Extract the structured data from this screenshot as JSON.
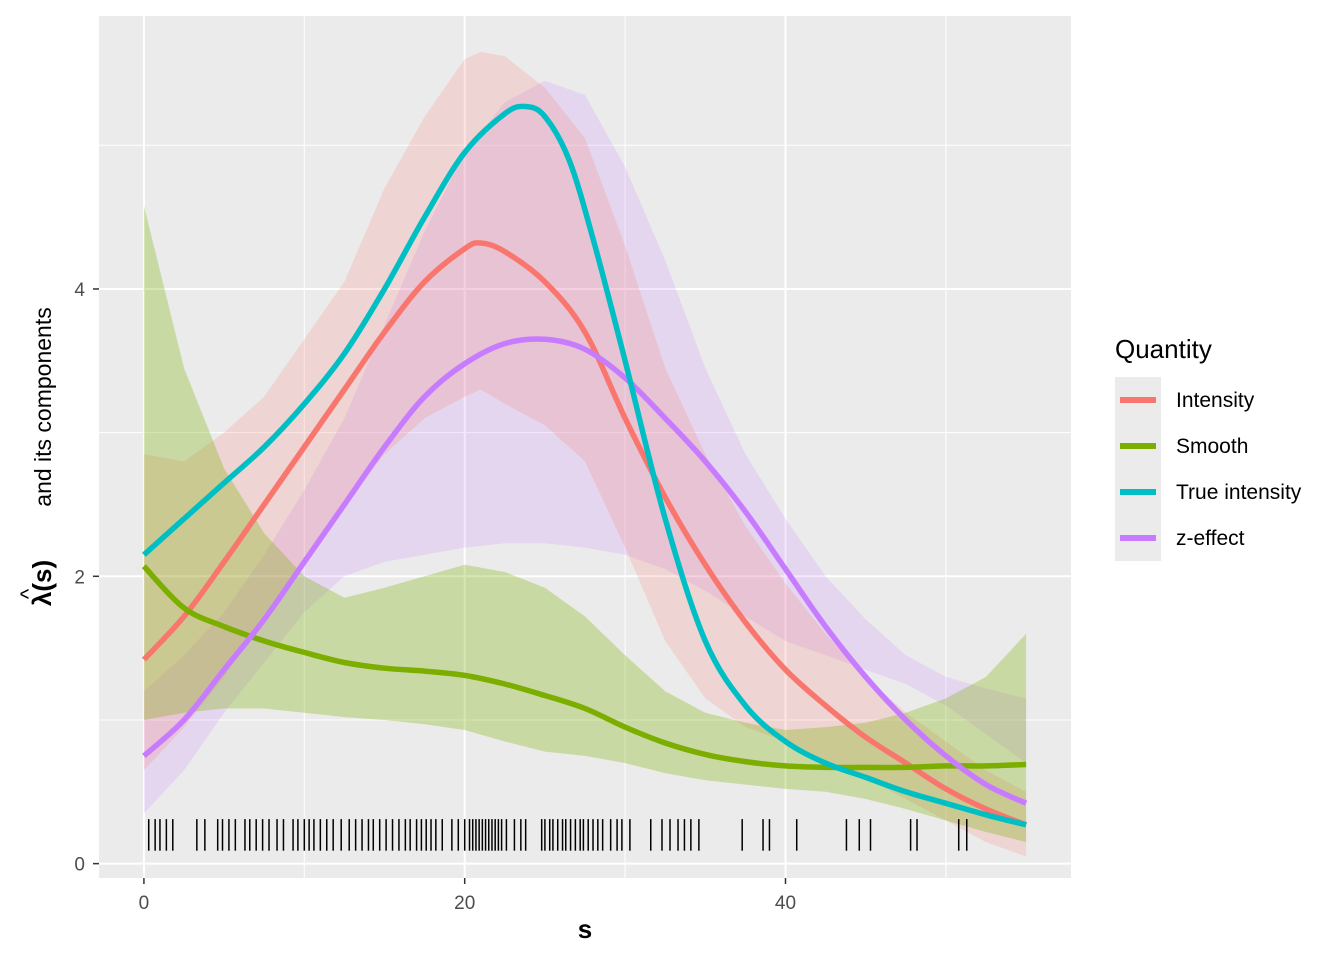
{
  "chart_data": {
    "type": "line",
    "title": "",
    "xlabel": "s",
    "ylabel_hat": "^",
    "ylabel_lambda": "λ(s)",
    "ylabel_rest": "and its components",
    "xlim": [
      -2.8,
      57.8
    ],
    "ylim": [
      -0.1,
      5.9
    ],
    "x_ticks": [
      0,
      20,
      40
    ],
    "x_tick_labels": [
      "0",
      "20",
      "40"
    ],
    "y_ticks": [
      0,
      2,
      4
    ],
    "y_tick_labels": [
      "0",
      "2",
      "4"
    ],
    "grid": true,
    "legend": {
      "title": "Quantity",
      "position": "right"
    },
    "series": [
      {
        "name": "Intensity",
        "color": "#F8766D",
        "x": [
          0,
          2.5,
          5,
          7.5,
          10,
          12.5,
          15,
          17.5,
          20,
          21,
          22.5,
          25,
          27.5,
          30,
          32.5,
          35,
          37.5,
          40,
          42.5,
          45,
          47.5,
          50,
          52.5,
          55
        ],
        "y": [
          1.42,
          1.72,
          2.1,
          2.5,
          2.9,
          3.3,
          3.7,
          4.05,
          4.28,
          4.32,
          4.26,
          4.05,
          3.7,
          3.1,
          2.55,
          2.08,
          1.68,
          1.35,
          1.1,
          0.88,
          0.7,
          0.52,
          0.38,
          0.27
        ],
        "lower": [
          0.65,
          0.95,
          1.3,
          1.7,
          2.1,
          2.5,
          2.85,
          3.1,
          3.25,
          3.3,
          3.2,
          3.05,
          2.8,
          2.2,
          1.55,
          1.15,
          0.95,
          0.85,
          0.72,
          0.6,
          0.45,
          0.3,
          0.15,
          0.05
        ],
        "upper": [
          2.85,
          2.8,
          3.0,
          3.25,
          3.65,
          4.05,
          4.7,
          5.2,
          5.6,
          5.65,
          5.62,
          5.4,
          5.05,
          4.3,
          3.45,
          2.85,
          2.35,
          1.95,
          1.6,
          1.3,
          1.05,
          0.85,
          0.65,
          0.5
        ]
      },
      {
        "name": "Smooth",
        "color": "#7CAE00",
        "x": [
          0,
          2.5,
          5,
          7.5,
          10,
          12.5,
          15,
          17.5,
          20,
          22.5,
          25,
          27.5,
          30,
          32.5,
          35,
          37.5,
          40,
          42.5,
          45,
          47.5,
          50,
          52.5,
          55
        ],
        "y": [
          2.07,
          1.78,
          1.65,
          1.55,
          1.47,
          1.4,
          1.36,
          1.34,
          1.31,
          1.25,
          1.17,
          1.08,
          0.95,
          0.84,
          0.76,
          0.71,
          0.68,
          0.67,
          0.67,
          0.67,
          0.68,
          0.68,
          0.69
        ],
        "lower": [
          1.0,
          1.05,
          1.08,
          1.08,
          1.05,
          1.02,
          1.0,
          0.97,
          0.93,
          0.85,
          0.78,
          0.75,
          0.7,
          0.63,
          0.58,
          0.55,
          0.52,
          0.5,
          0.45,
          0.38,
          0.3,
          0.22,
          0.15
        ],
        "upper": [
          4.58,
          3.45,
          2.75,
          2.3,
          2.0,
          1.85,
          1.92,
          2.0,
          2.08,
          2.03,
          1.92,
          1.72,
          1.45,
          1.2,
          1.05,
          0.98,
          0.93,
          0.95,
          0.98,
          1.05,
          1.15,
          1.3,
          1.6
        ]
      },
      {
        "name": "True intensity",
        "color": "#00BFC4",
        "x": [
          0,
          2.5,
          5,
          7.5,
          10,
          12.5,
          15,
          17.5,
          20,
          22.5,
          23.8,
          25,
          26.5,
          28,
          30,
          32.5,
          35,
          37.5,
          40,
          42.5,
          45,
          47.5,
          50,
          52.5,
          55
        ],
        "y": [
          2.15,
          2.4,
          2.65,
          2.9,
          3.2,
          3.55,
          4.0,
          4.5,
          4.95,
          5.22,
          5.27,
          5.2,
          4.9,
          4.35,
          3.5,
          2.4,
          1.55,
          1.1,
          0.85,
          0.7,
          0.6,
          0.5,
          0.42,
          0.34,
          0.27
        ]
      },
      {
        "name": "z-effect",
        "color": "#C77CFF",
        "x": [
          0,
          2.5,
          5,
          7.5,
          10,
          12.5,
          15,
          17.5,
          20,
          22.5,
          25,
          27.5,
          30,
          32.5,
          35,
          37.5,
          40,
          42.5,
          45,
          47.5,
          50,
          52.5,
          55
        ],
        "y": [
          0.75,
          1.0,
          1.35,
          1.7,
          2.1,
          2.5,
          2.9,
          3.25,
          3.48,
          3.62,
          3.65,
          3.58,
          3.38,
          3.1,
          2.8,
          2.45,
          2.05,
          1.65,
          1.3,
          1.0,
          0.75,
          0.55,
          0.42
        ],
        "lower": [
          0.35,
          0.65,
          1.05,
          1.4,
          1.75,
          2.0,
          2.1,
          2.15,
          2.2,
          2.23,
          2.23,
          2.2,
          2.15,
          2.05,
          1.9,
          1.72,
          1.55,
          1.45,
          1.35,
          1.25,
          1.1,
          0.9,
          0.7
        ],
        "upper": [
          1.2,
          1.45,
          1.65,
          2.0,
          2.45,
          2.85,
          3.05,
          3.2,
          3.28,
          3.33,
          3.35,
          3.32,
          3.3,
          3.4,
          3.55,
          3.35,
          2.8,
          2.25,
          1.85,
          1.55,
          1.3,
          1.12,
          0.97
        ],
        "band_upper_combined": [
          1.2,
          1.45,
          1.75,
          2.15,
          2.6,
          3.1,
          3.75,
          4.4,
          4.95,
          5.3,
          5.45,
          5.35,
          4.85,
          4.2,
          3.45,
          2.85,
          2.4,
          2.0,
          1.7,
          1.45,
          1.3,
          1.22,
          1.15
        ]
      }
    ],
    "rug_x": [
      0.3,
      0.7,
      1.0,
      1.4,
      1.8,
      3.3,
      3.8,
      4.6,
      4.9,
      5.3,
      5.7,
      6.3,
      6.6,
      7.0,
      7.4,
      7.8,
      8.3,
      8.7,
      9.3,
      9.6,
      10.0,
      10.3,
      10.6,
      11.0,
      11.4,
      11.8,
      12.3,
      12.8,
      13.2,
      13.6,
      14.0,
      14.3,
      14.7,
      15.1,
      15.5,
      15.9,
      16.3,
      16.6,
      17.0,
      17.3,
      17.6,
      17.9,
      18.2,
      18.6,
      19.2,
      19.6,
      20.0,
      20.3,
      20.5,
      20.7,
      20.9,
      21.1,
      21.3,
      21.5,
      21.7,
      21.9,
      22.1,
      22.3,
      22.6,
      23.1,
      23.5,
      23.8,
      24.8,
      25.0,
      25.3,
      25.5,
      25.8,
      26.1,
      26.3,
      26.6,
      26.9,
      27.2,
      27.4,
      27.7,
      28.0,
      28.3,
      28.6,
      29.1,
      29.5,
      29.8,
      30.3,
      31.6,
      32.3,
      32.8,
      33.3,
      33.7,
      34.1,
      34.6,
      37.3,
      38.6,
      39.0,
      40.7,
      43.8,
      44.6,
      45.3,
      47.8,
      48.2,
      50.8,
      51.3
    ]
  }
}
